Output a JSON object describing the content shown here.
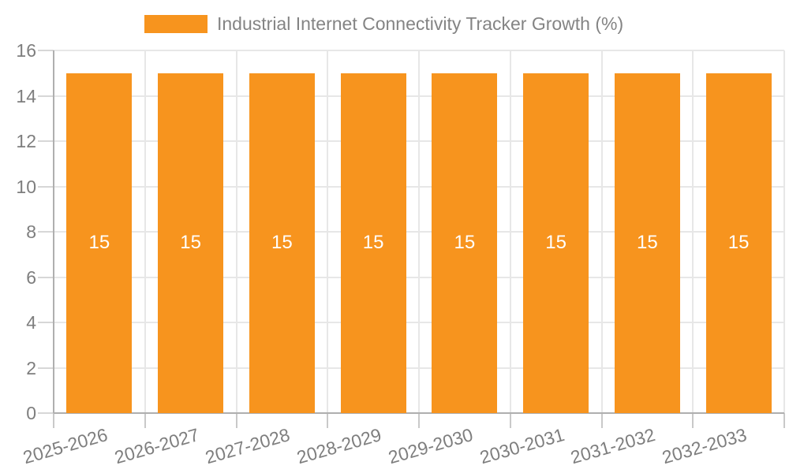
{
  "chart_data": {
    "type": "bar",
    "title": "Industrial Internet Connectivity Tracker Growth (%)",
    "legend_position": "top",
    "categories": [
      "2025-2026",
      "2026-2027",
      "2027-2028",
      "2028-2029",
      "2029-2030",
      "2030-2031",
      "2031-2032",
      "2032-2033"
    ],
    "series": [
      {
        "name": "Industrial Internet Connectivity Tracker Growth (%)",
        "values": [
          15,
          15,
          15,
          15,
          15,
          15,
          15,
          15
        ],
        "color": "#F7941E"
      }
    ],
    "bar_value_labels": [
      "15",
      "15",
      "15",
      "15",
      "15",
      "15",
      "15",
      "15"
    ],
    "xlabel": "",
    "ylabel": "",
    "ylim": [
      0,
      16
    ],
    "yticks": [
      0,
      2,
      4,
      6,
      8,
      10,
      12,
      14,
      16
    ],
    "grid": true,
    "x_tick_label_rotation_deg": -16,
    "colors": {
      "bar": "#F7941E",
      "bar_label_text": "#FFFFFF",
      "axis_line": "#AFAFAF",
      "grid_line": "#E7E7E7",
      "y_tick_mark": "#D7D7D7",
      "x_tick_mark": "#C9C9C9",
      "tick_text": "#7E7E7E",
      "legend_text": "#848484",
      "background": "#FFFFFF"
    }
  }
}
